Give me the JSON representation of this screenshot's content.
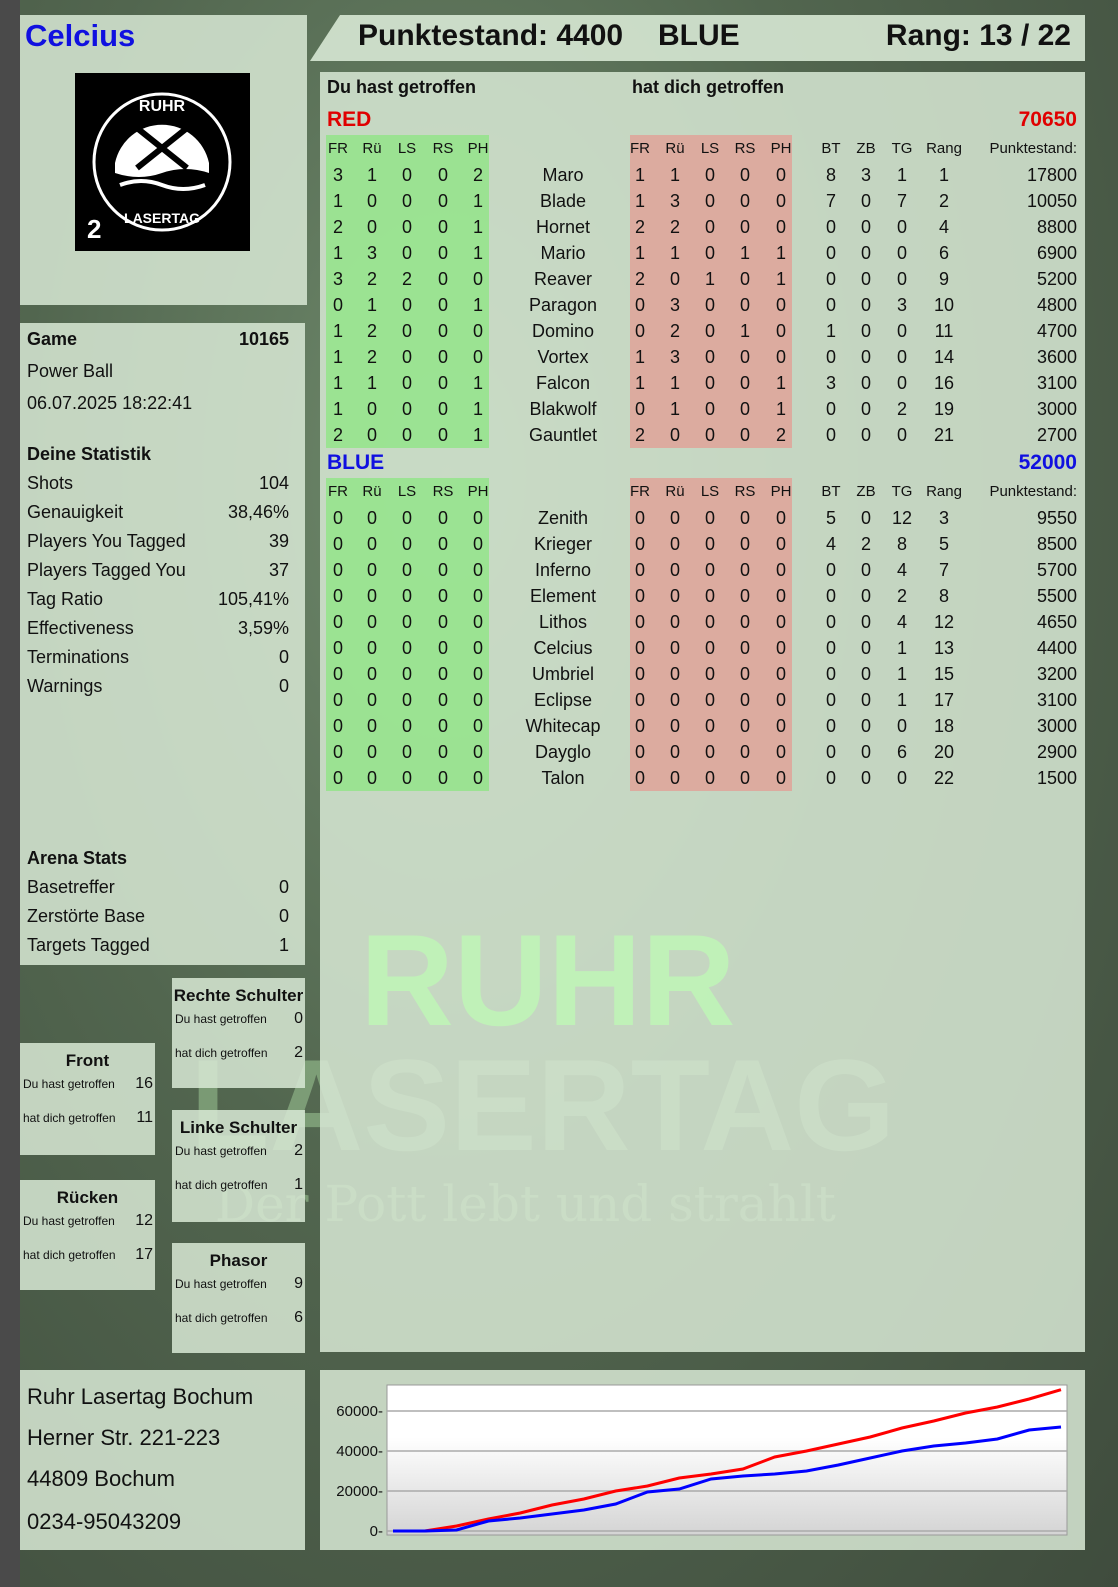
{
  "player": {
    "name": "Celcius",
    "score_label": "Punktestand: 4400",
    "team": "BLUE",
    "rank_label": "Rang: 13 / 22"
  },
  "logo": {
    "text_top": "RUHR",
    "text_bottom": "LASERTAG",
    "number": "2"
  },
  "watermark": {
    "line1": "RUHR",
    "line2": "LASERTAG",
    "tagline": "Der Pott lebt und strahlt"
  },
  "game": {
    "label": "Game",
    "id": "10165",
    "mode": "Power Ball",
    "datetime": "06.07.2025 18:22:41"
  },
  "stats": {
    "title": "Deine Statistik",
    "items": [
      {
        "label": "Shots",
        "value": "104"
      },
      {
        "label": "Genauigkeit",
        "value": "38,46%"
      },
      {
        "label": "Players You Tagged",
        "value": "39"
      },
      {
        "label": "Players Tagged You",
        "value": "37"
      },
      {
        "label": "Tag Ratio",
        "value": "105,41%"
      },
      {
        "label": "Effectiveness",
        "value": "3,59%"
      },
      {
        "label": "Terminations",
        "value": "0"
      },
      {
        "label": "Warnings",
        "value": "0"
      }
    ]
  },
  "arena": {
    "title": "Arena Stats",
    "items": [
      {
        "label": "Basetreffer",
        "value": "0"
      },
      {
        "label": "Zerstörte Base",
        "value": "0"
      },
      {
        "label": "Targets Tagged",
        "value": "1"
      }
    ]
  },
  "zones": [
    {
      "title": "Rechte Schulter",
      "hit_label": "Du hast getroffen",
      "hit": "0",
      "got_label": "hat dich getroffen",
      "got": "2"
    },
    {
      "title": "Front",
      "hit_label": "Du hast getroffen",
      "hit": "16",
      "got_label": "hat dich getroffen",
      "got": "11"
    },
    {
      "title": "Linke Schulter",
      "hit_label": "Du hast getroffen",
      "hit": "2",
      "got_label": "hat dich getroffen",
      "got": "1"
    },
    {
      "title": "Rücken",
      "hit_label": "Du hast getroffen",
      "hit": "12",
      "got_label": "hat dich getroffen",
      "got": "17"
    },
    {
      "title": "Phasor",
      "hit_label": "Du hast getroffen",
      "hit": "9",
      "got_label": "hat dich getroffen",
      "got": "6"
    }
  ],
  "address": [
    "Ruhr Lasertag Bochum",
    "Herner Str. 221-223",
    "44809 Bochum",
    "0234-95043209"
  ],
  "table": {
    "you_hit": "Du hast getroffen",
    "hit_you": "hat dich getroffen",
    "headers_a": [
      "FR",
      "Rü",
      "LS",
      "RS",
      "PH"
    ],
    "headers_b": [
      "FR",
      "Rü",
      "LS",
      "RS",
      "PH"
    ],
    "headers_c": [
      "BT",
      "ZB",
      "TG",
      "Rang"
    ],
    "score_header": "Punktestand:",
    "teams": [
      {
        "name": "RED",
        "total": "70650",
        "color": "#e00000",
        "rows": [
          [
            "3",
            "1",
            "0",
            "0",
            "2",
            "Maro",
            "1",
            "1",
            "0",
            "0",
            "0",
            "8",
            "3",
            "1",
            "1",
            "17800"
          ],
          [
            "1",
            "0",
            "0",
            "0",
            "1",
            "Blade",
            "1",
            "3",
            "0",
            "0",
            "0",
            "7",
            "0",
            "7",
            "2",
            "10050"
          ],
          [
            "2",
            "0",
            "0",
            "0",
            "1",
            "Hornet",
            "2",
            "2",
            "0",
            "0",
            "0",
            "0",
            "0",
            "0",
            "4",
            "8800"
          ],
          [
            "1",
            "3",
            "0",
            "0",
            "1",
            "Mario",
            "1",
            "1",
            "0",
            "1",
            "1",
            "0",
            "0",
            "0",
            "6",
            "6900"
          ],
          [
            "3",
            "2",
            "2",
            "0",
            "0",
            "Reaver",
            "2",
            "0",
            "1",
            "0",
            "1",
            "0",
            "0",
            "0",
            "9",
            "5200"
          ],
          [
            "0",
            "1",
            "0",
            "0",
            "1",
            "Paragon",
            "0",
            "3",
            "0",
            "0",
            "0",
            "0",
            "0",
            "3",
            "10",
            "4800"
          ],
          [
            "1",
            "2",
            "0",
            "0",
            "0",
            "Domino",
            "0",
            "2",
            "0",
            "1",
            "0",
            "1",
            "0",
            "0",
            "11",
            "4700"
          ],
          [
            "1",
            "2",
            "0",
            "0",
            "0",
            "Vortex",
            "1",
            "3",
            "0",
            "0",
            "0",
            "0",
            "0",
            "0",
            "14",
            "3600"
          ],
          [
            "1",
            "1",
            "0",
            "0",
            "1",
            "Falcon",
            "1",
            "1",
            "0",
            "0",
            "1",
            "3",
            "0",
            "0",
            "16",
            "3100"
          ],
          [
            "1",
            "0",
            "0",
            "0",
            "1",
            "Blakwolf",
            "0",
            "1",
            "0",
            "0",
            "1",
            "0",
            "0",
            "2",
            "19",
            "3000"
          ],
          [
            "2",
            "0",
            "0",
            "0",
            "1",
            "Gauntlet",
            "2",
            "0",
            "0",
            "0",
            "2",
            "0",
            "0",
            "0",
            "21",
            "2700"
          ]
        ]
      },
      {
        "name": "BLUE",
        "total": "52000",
        "color": "#1010e0",
        "rows": [
          [
            "0",
            "0",
            "0",
            "0",
            "0",
            "Zenith",
            "0",
            "0",
            "0",
            "0",
            "0",
            "5",
            "0",
            "12",
            "3",
            "9550"
          ],
          [
            "0",
            "0",
            "0",
            "0",
            "0",
            "Krieger",
            "0",
            "0",
            "0",
            "0",
            "0",
            "4",
            "2",
            "8",
            "5",
            "8500"
          ],
          [
            "0",
            "0",
            "0",
            "0",
            "0",
            "Inferno",
            "0",
            "0",
            "0",
            "0",
            "0",
            "0",
            "0",
            "4",
            "7",
            "5700"
          ],
          [
            "0",
            "0",
            "0",
            "0",
            "0",
            "Element",
            "0",
            "0",
            "0",
            "0",
            "0",
            "0",
            "0",
            "2",
            "8",
            "5500"
          ],
          [
            "0",
            "0",
            "0",
            "0",
            "0",
            "Lithos",
            "0",
            "0",
            "0",
            "0",
            "0",
            "0",
            "0",
            "4",
            "12",
            "4650"
          ],
          [
            "0",
            "0",
            "0",
            "0",
            "0",
            "Celcius",
            "0",
            "0",
            "0",
            "0",
            "0",
            "0",
            "0",
            "1",
            "13",
            "4400"
          ],
          [
            "0",
            "0",
            "0",
            "0",
            "0",
            "Umbriel",
            "0",
            "0",
            "0",
            "0",
            "0",
            "0",
            "0",
            "1",
            "15",
            "3200"
          ],
          [
            "0",
            "0",
            "0",
            "0",
            "0",
            "Eclipse",
            "0",
            "0",
            "0",
            "0",
            "0",
            "0",
            "0",
            "1",
            "17",
            "3100"
          ],
          [
            "0",
            "0",
            "0",
            "0",
            "0",
            "Whitecap",
            "0",
            "0",
            "0",
            "0",
            "0",
            "0",
            "0",
            "0",
            "18",
            "3000"
          ],
          [
            "0",
            "0",
            "0",
            "0",
            "0",
            "Dayglo",
            "0",
            "0",
            "0",
            "0",
            "0",
            "0",
            "0",
            "6",
            "20",
            "2900"
          ],
          [
            "0",
            "0",
            "0",
            "0",
            "0",
            "Talon",
            "0",
            "0",
            "0",
            "0",
            "0",
            "0",
            "0",
            "0",
            "22",
            "1500"
          ]
        ]
      }
    ]
  },
  "chart_data": {
    "type": "line",
    "ylim": [
      0,
      72000
    ],
    "yticks": [
      0,
      20000,
      40000,
      60000
    ],
    "ytick_labels": [
      "0",
      "20000",
      "40000",
      "60000"
    ],
    "grid": true,
    "x": [
      0,
      1,
      2,
      3,
      4,
      5,
      6,
      7,
      8,
      9,
      10,
      11,
      12,
      13,
      14,
      15,
      16,
      17,
      18,
      19,
      20,
      21
    ],
    "series": [
      {
        "color": "#ff0000",
        "values": [
          0,
          0,
          2500,
          6000,
          9000,
          13000,
          16000,
          20000,
          22500,
          26500,
          28500,
          31000,
          37000,
          40000,
          43500,
          47000,
          51500,
          55000,
          59000,
          62000,
          66000,
          70650
        ]
      },
      {
        "color": "#0000ff",
        "values": [
          0,
          0,
          500,
          5000,
          6500,
          8500,
          10500,
          13500,
          19500,
          21000,
          26000,
          27500,
          28500,
          30000,
          33000,
          36500,
          40000,
          42500,
          44000,
          46000,
          50500,
          52000
        ]
      }
    ]
  }
}
